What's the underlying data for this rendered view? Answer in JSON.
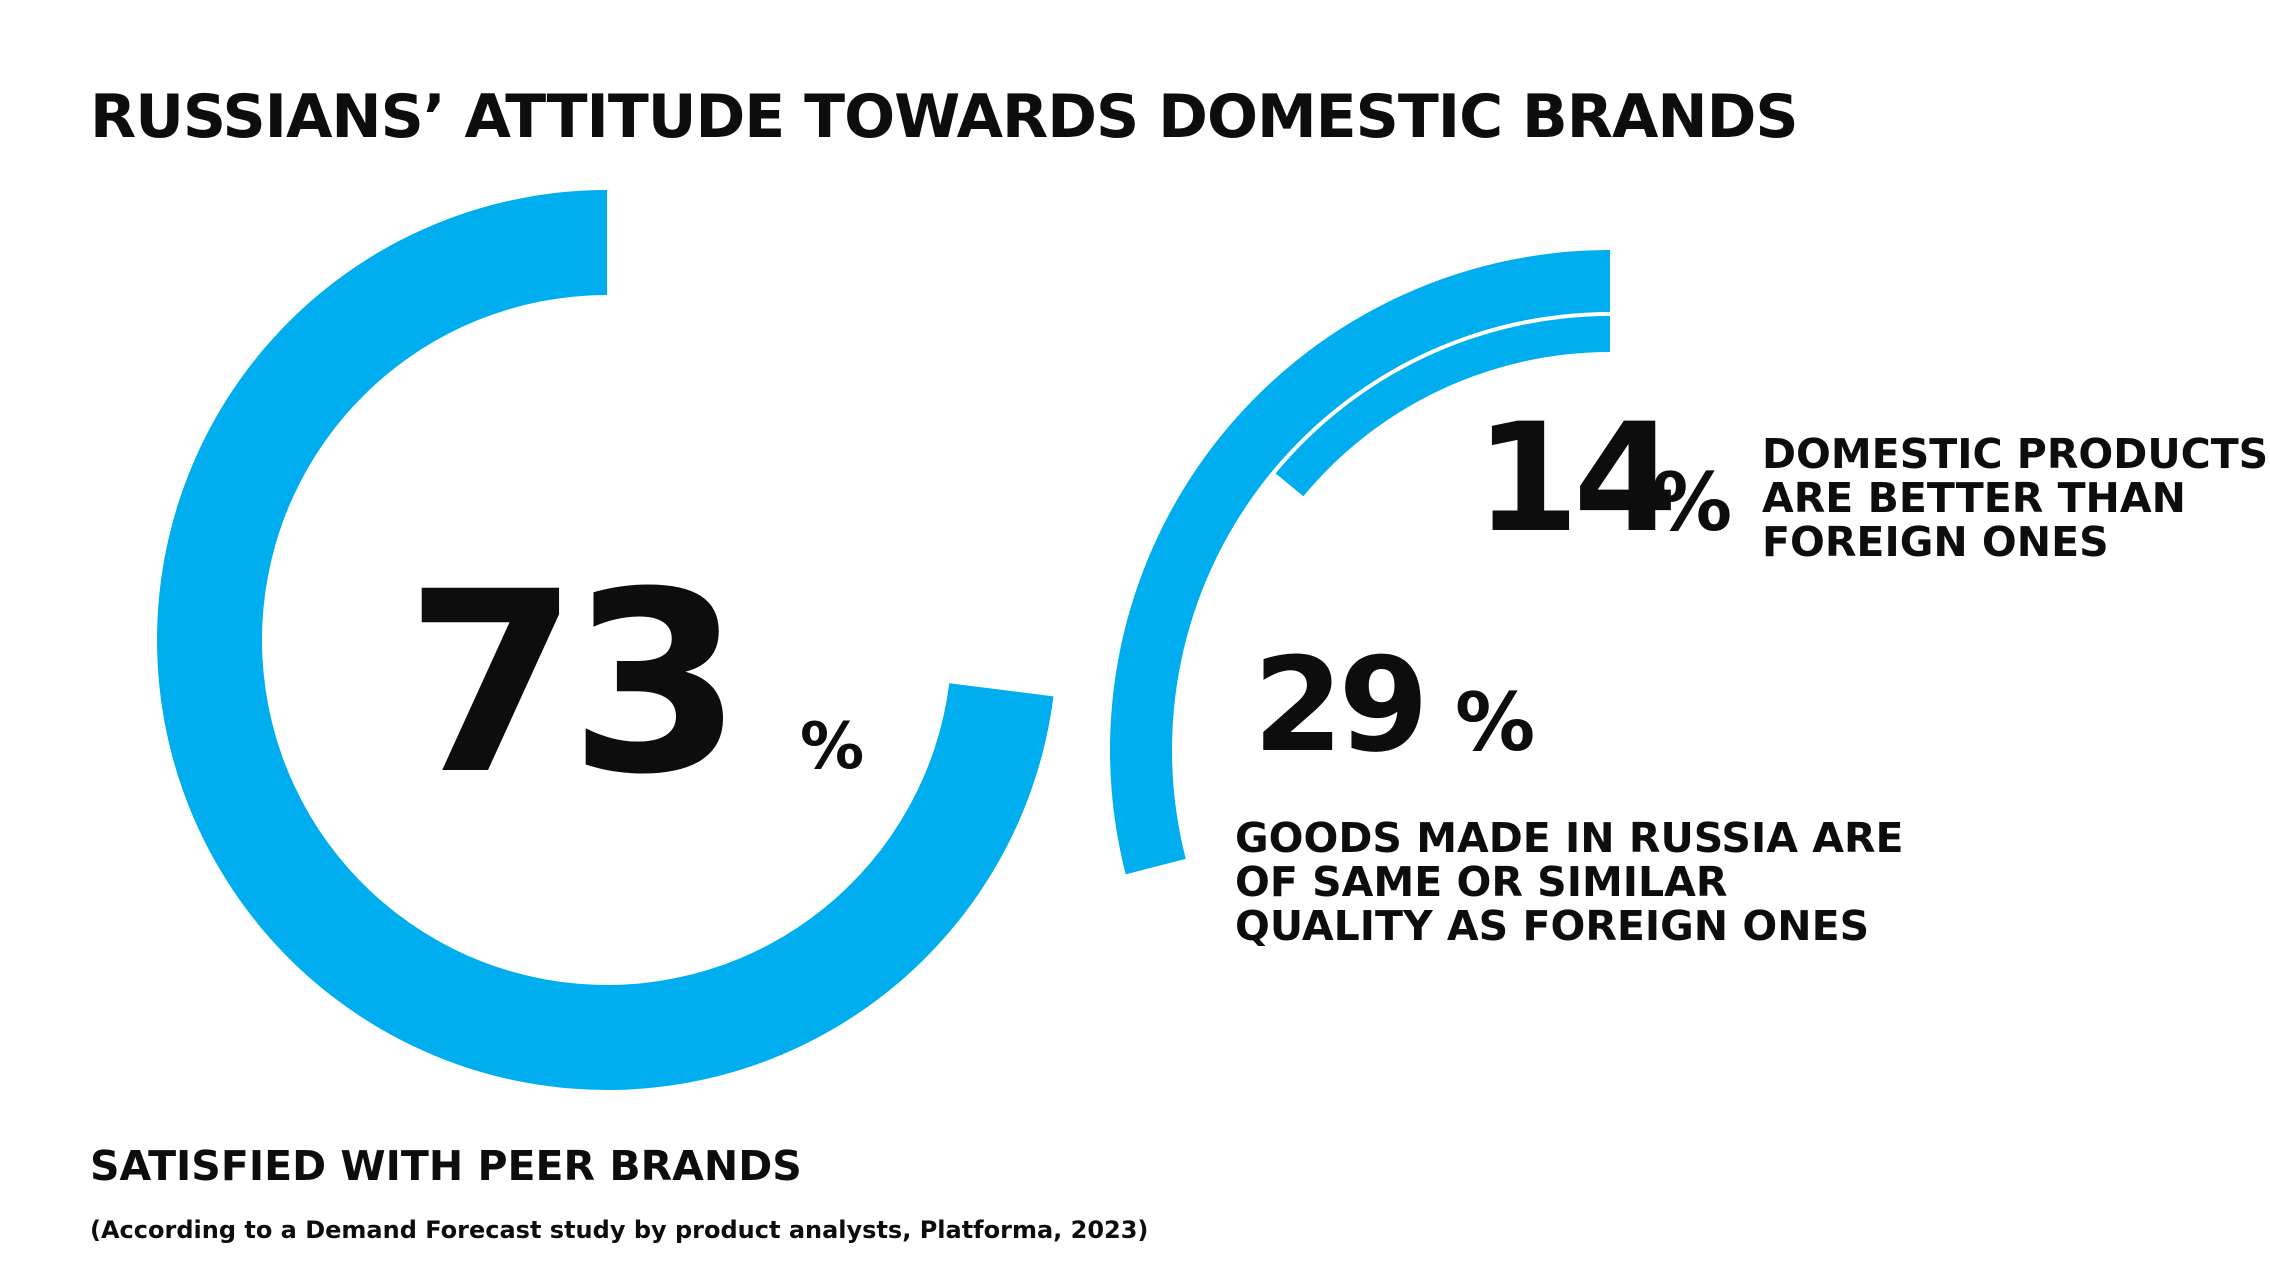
{
  "chart_data": {
    "type": "donut",
    "title": "RUSSIANS’ ATTITUDE TOWARDS DOMESTIC BRANDS",
    "source": "(According to a Demand Forecast study by product analysts, Platforma, 2023)",
    "accent_color": "#00AEEF",
    "series": [
      {
        "name": "SATISFIED WITH PEER BRANDS",
        "value": 73,
        "number_label": "73",
        "unit": "%"
      },
      {
        "name": "GOODS MADE IN RUSSIA ARE OF SAME OR SIMILAR QUALITY AS FOREIGN ONES",
        "value": 29,
        "number_label": "29",
        "unit": "%",
        "label_lines": [
          "GOODS MADE IN RUSSIA ARE",
          "OF SAME OR SIMILAR",
          "QUALITY AS FOREIGN ONES"
        ]
      },
      {
        "name": "DOMESTIC PRODUCTS ARE BETTER THAN FOREIGN ONES",
        "value": 14,
        "number_label": "14",
        "unit": "%",
        "label_lines": [
          "DOMESTIC PRODUCTS",
          "ARE BETTER THAN",
          "FOREIGN ONES"
        ]
      }
    ]
  }
}
